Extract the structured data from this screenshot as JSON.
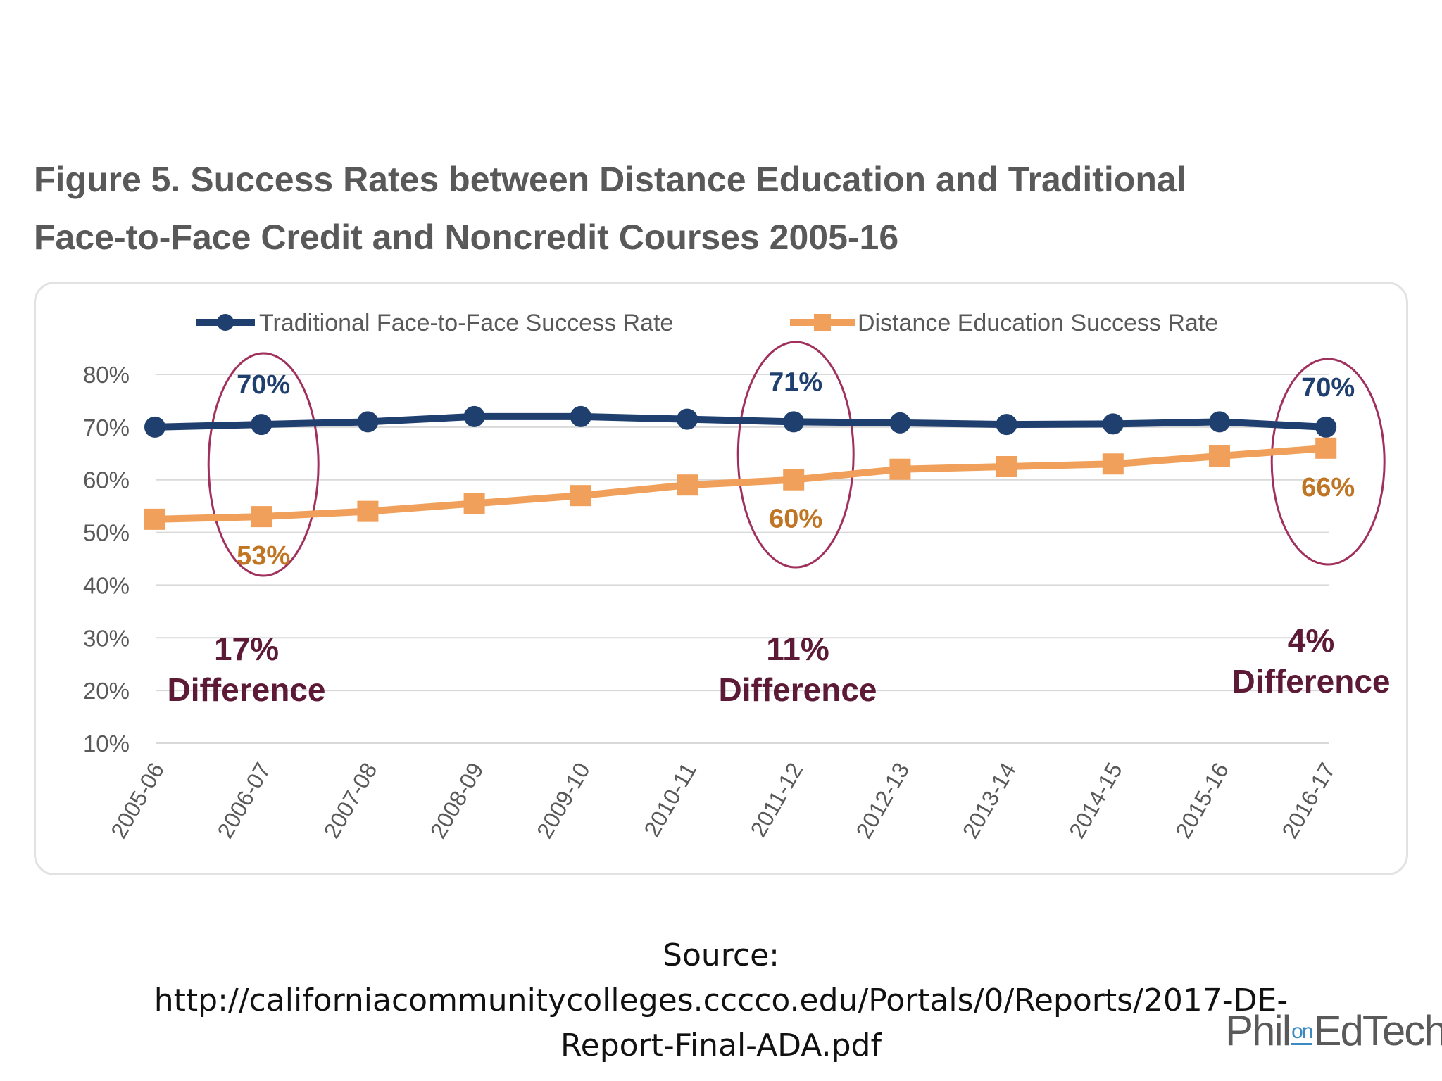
{
  "title_lines": [
    "Figure 5. Success Rates between Distance Education and Traditional",
    "Face-to-Face Credit and Noncredit Courses 2005-16"
  ],
  "chart_data": {
    "type": "line",
    "categories": [
      "2005-06",
      "2006-07",
      "2007-08",
      "2008-09",
      "2009-10",
      "2010-11",
      "2011-12",
      "2012-13",
      "2013-14",
      "2014-15",
      "2015-16",
      "2016-17"
    ],
    "ylim": [
      10,
      80
    ],
    "yticks": [
      "80%",
      "70%",
      "60%",
      "50%",
      "40%",
      "30%",
      "20%",
      "10%"
    ],
    "grid": true,
    "legend_position": "top",
    "series": [
      {
        "name": "Traditional Face-to-Face Success Rate",
        "color": "#1f3f6e",
        "marker": "circle",
        "values": [
          70,
          70.5,
          71,
          72,
          72,
          71.5,
          71,
          70.8,
          70.5,
          70.6,
          71,
          70
        ]
      },
      {
        "name": "Distance Education Success Rate",
        "color": "#f0a05a",
        "marker": "square",
        "values": [
          52.5,
          53,
          54,
          55.5,
          57,
          59,
          60,
          62,
          62.5,
          63,
          64.5,
          66
        ]
      }
    ],
    "data_labels": [
      {
        "series": 0,
        "index": 1,
        "text": "70%"
      },
      {
        "series": 0,
        "index": 6,
        "text": "71%"
      },
      {
        "series": 0,
        "index": 11,
        "text": "70%"
      },
      {
        "series": 1,
        "index": 1,
        "text": "53%"
      },
      {
        "series": 1,
        "index": 6,
        "text": "60%"
      },
      {
        "series": 1,
        "index": 11,
        "text": "66%"
      }
    ],
    "annotations": [
      {
        "index": 1,
        "lines": [
          "17%",
          "Difference"
        ]
      },
      {
        "index": 6,
        "lines": [
          "11%",
          "Difference"
        ]
      },
      {
        "index": 11,
        "lines": [
          "4%",
          "Difference"
        ]
      }
    ],
    "colors": {
      "traditional_label": "#1f3f6e",
      "distance_label": "#c07524",
      "annotation": "#5c1a36",
      "ellipse": "#a0305c"
    }
  },
  "source": {
    "lines": [
      "Source:",
      "http://californiacommunitycolleges.cccco.edu/Portals/0/Reports/2017-DE-",
      "Report-Final-ADA.pdf"
    ]
  },
  "logo": {
    "part1": "Phil",
    "part2": "on",
    "part3": "EdTech"
  }
}
